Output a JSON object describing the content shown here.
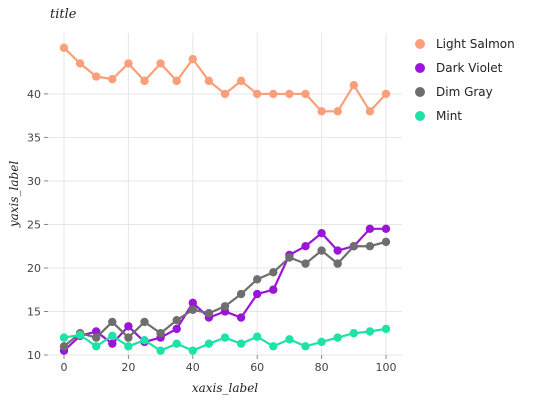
{
  "chart_data": {
    "type": "line",
    "title": "title",
    "xlabel": "xaxis_label",
    "ylabel": "yaxis_label",
    "xlim": [
      0,
      100
    ],
    "ylim": [
      10,
      47
    ],
    "x_ticks": [
      0,
      20,
      40,
      60,
      80,
      100
    ],
    "y_ticks": [
      10,
      15,
      20,
      25,
      30,
      35,
      40
    ],
    "grid": true,
    "legend_position": "right",
    "series": [
      {
        "name": "Light Salmon",
        "color": "#FA9F79",
        "x": [
          0,
          5,
          10,
          15,
          20,
          25,
          30,
          35,
          40,
          45,
          50,
          55,
          60,
          65,
          70,
          75,
          80,
          85,
          90,
          95,
          100
        ],
        "y": [
          45.3,
          43.5,
          42.0,
          41.7,
          43.5,
          41.5,
          43.5,
          41.5,
          44.0,
          41.5,
          40.0,
          41.5,
          40.0,
          40.0,
          40.0,
          40.0,
          38.0,
          38.0,
          41.0,
          38.0,
          40.0
        ]
      },
      {
        "name": "Dark Violet",
        "color": "#9A16D6",
        "x": [
          0,
          5,
          10,
          15,
          20,
          25,
          30,
          35,
          40,
          45,
          50,
          55,
          60,
          65,
          70,
          75,
          80,
          85,
          90,
          95,
          100
        ],
        "y": [
          10.5,
          12.2,
          12.7,
          11.3,
          13.3,
          11.5,
          12.0,
          13.0,
          16.0,
          14.3,
          15.0,
          14.3,
          17.0,
          17.5,
          21.5,
          22.5,
          24.0,
          22.0,
          22.5,
          24.5,
          24.5
        ]
      },
      {
        "name": "Dim Gray",
        "color": "#6E6E6E",
        "x": [
          0,
          5,
          10,
          15,
          20,
          25,
          30,
          35,
          40,
          45,
          50,
          55,
          60,
          65,
          70,
          75,
          80,
          85,
          90,
          95,
          100
        ],
        "y": [
          11.0,
          12.5,
          12.0,
          13.8,
          12.0,
          13.8,
          12.5,
          14.0,
          15.2,
          14.8,
          15.6,
          17.0,
          18.7,
          19.5,
          21.2,
          20.5,
          22.0,
          20.5,
          22.5,
          22.5,
          23.0
        ]
      },
      {
        "name": "Mint",
        "color": "#1EE2A6",
        "x": [
          0,
          5,
          10,
          15,
          20,
          25,
          30,
          35,
          40,
          45,
          50,
          55,
          60,
          65,
          70,
          75,
          80,
          85,
          90,
          95,
          100
        ],
        "y": [
          12.0,
          12.3,
          11.0,
          12.2,
          11.0,
          11.7,
          10.5,
          11.3,
          10.5,
          11.3,
          12.0,
          11.3,
          12.1,
          11.0,
          11.8,
          11.0,
          11.5,
          12.0,
          12.5,
          12.7,
          13.0
        ]
      }
    ]
  }
}
